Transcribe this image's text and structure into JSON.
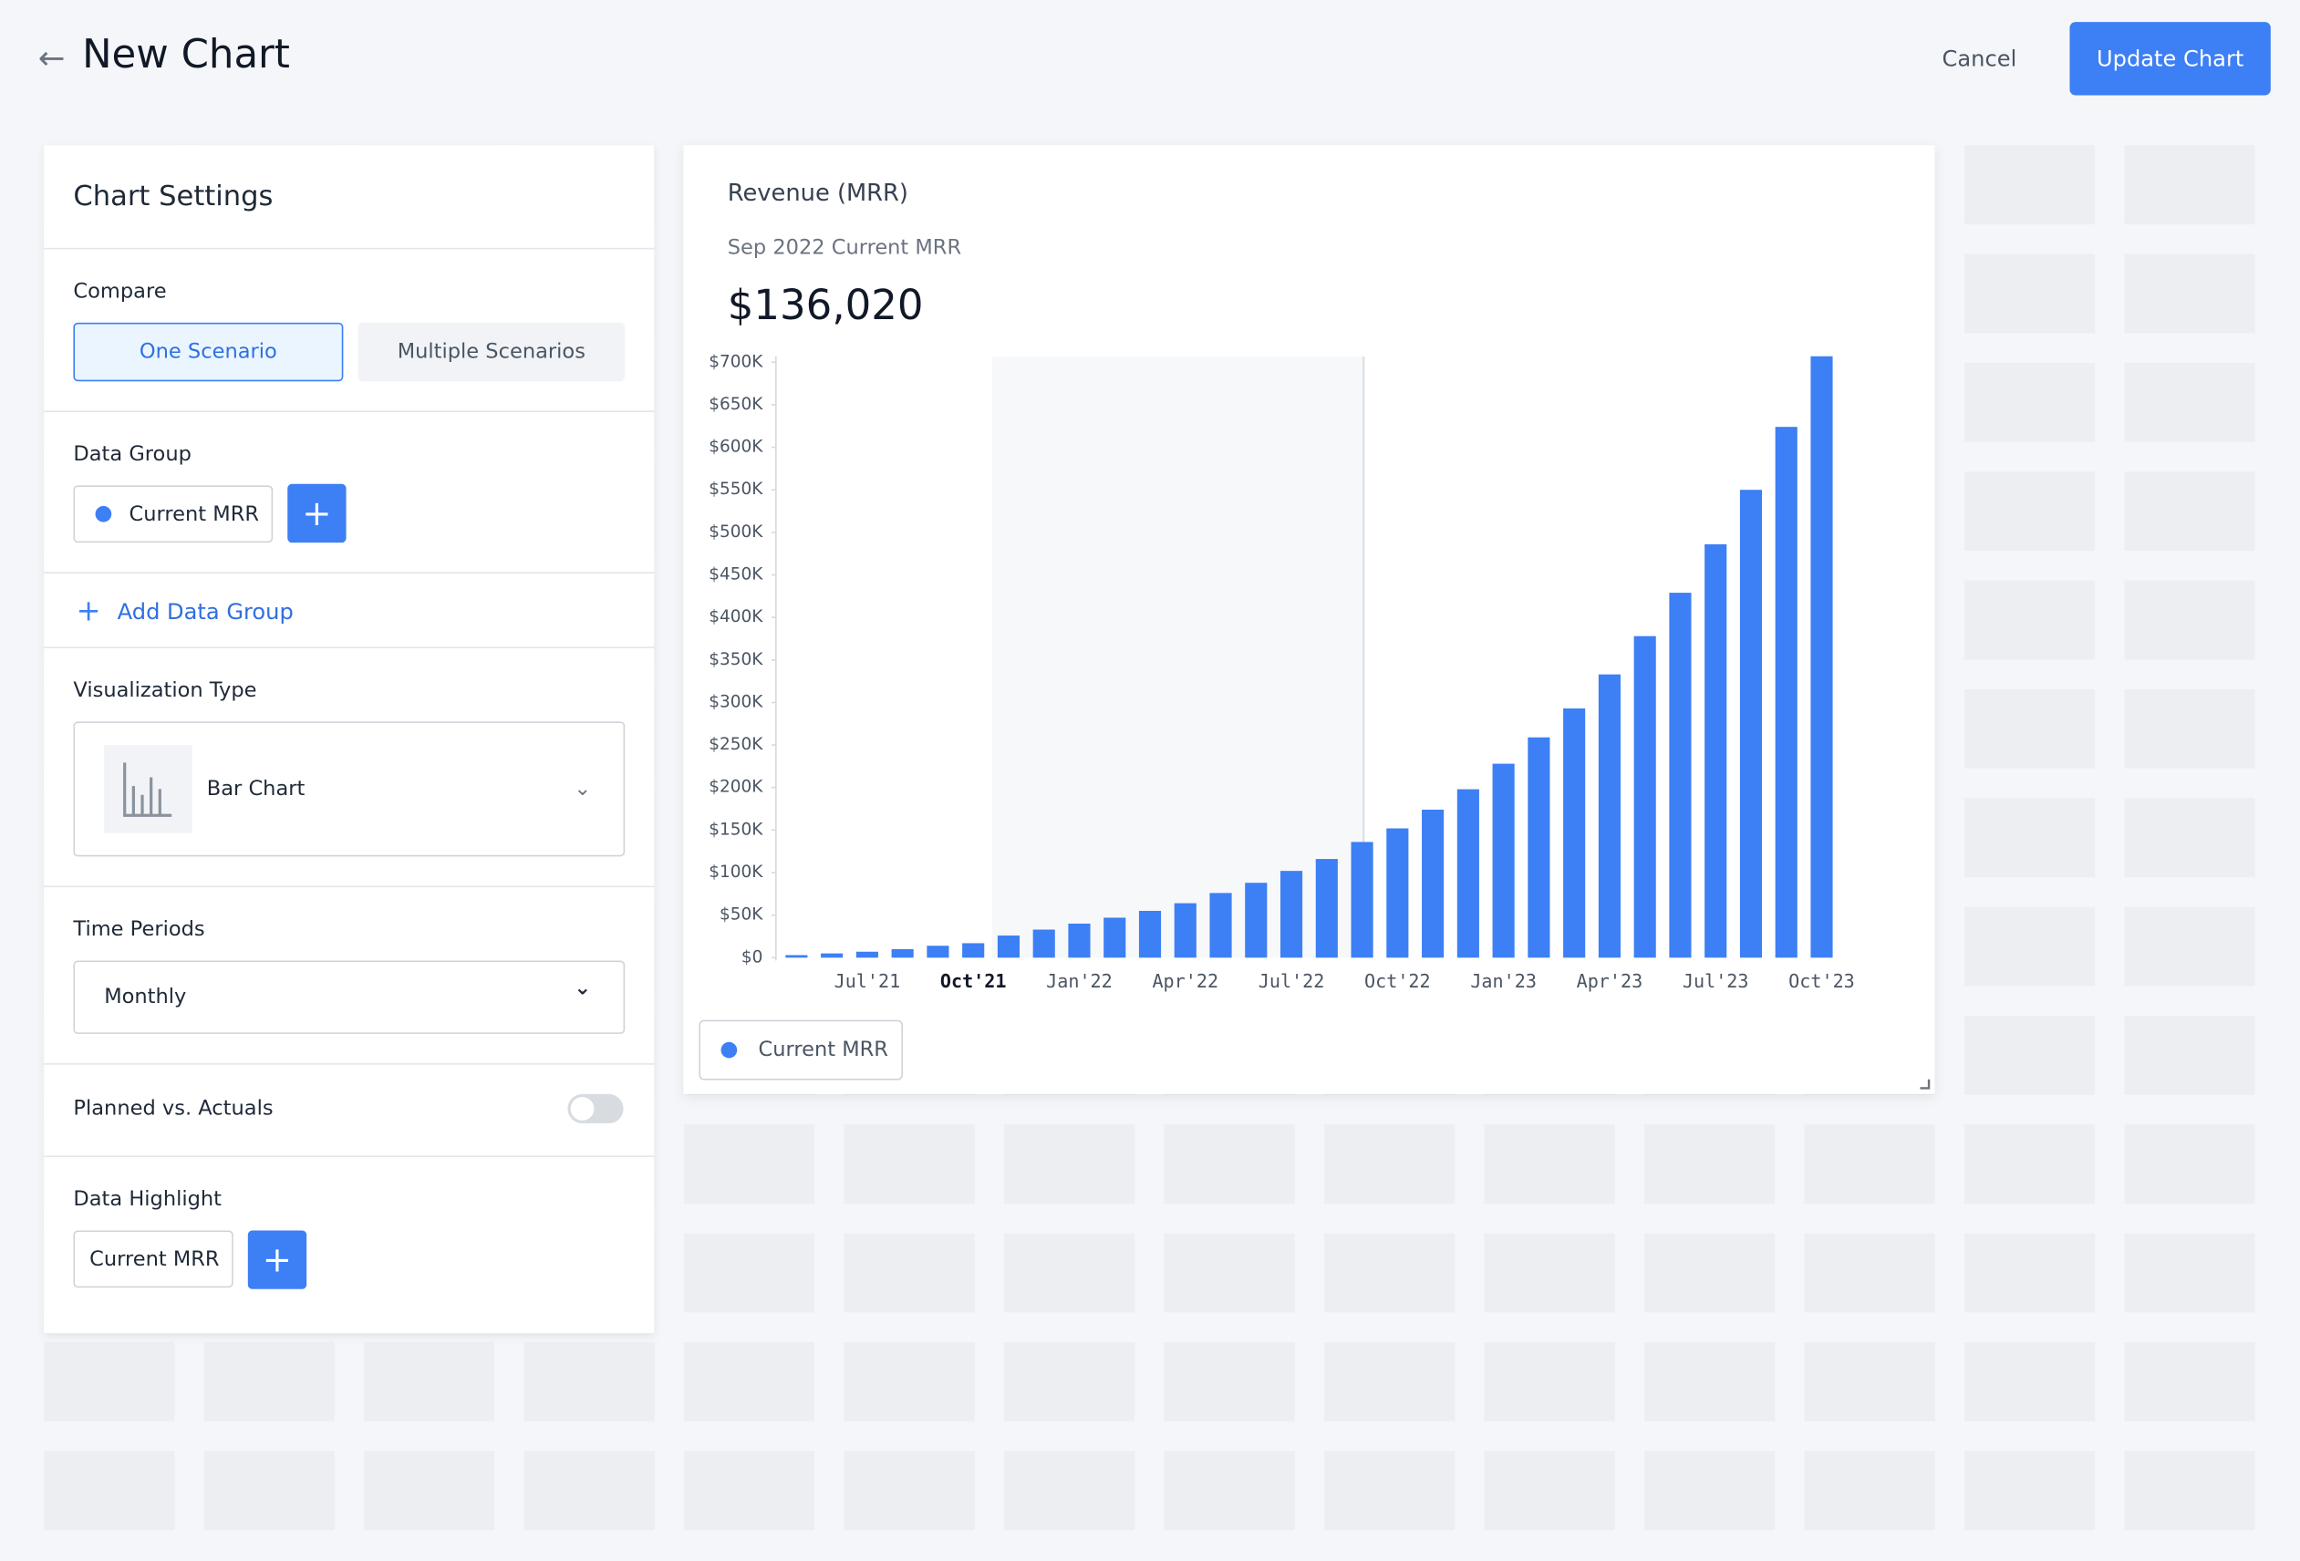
{
  "header": {
    "title": "New Chart",
    "cancel": "Cancel",
    "update": "Update Chart"
  },
  "settings": {
    "title": "Chart Settings",
    "compare": {
      "label": "Compare",
      "options": [
        "One Scenario",
        "Multiple Scenarios"
      ]
    },
    "data_group": {
      "label": "Data Group",
      "item": "Current MRR",
      "add": "Add Data Group"
    },
    "visualization": {
      "label": "Visualization Type",
      "value": "Bar Chart"
    },
    "time_periods": {
      "label": "Time Periods",
      "value": "Monthly"
    },
    "planned": {
      "label": "Planned vs. Actuals"
    },
    "highlight": {
      "label": "Data Highlight",
      "item": "Current MRR"
    }
  },
  "chart_data": {
    "type": "bar",
    "title": "Revenue (MRR)",
    "subtitle": "Sep 2022 Current MRR",
    "annotation": "$136,020",
    "categories": [
      null,
      null,
      "Jul'21",
      null,
      null,
      "Oct'21",
      null,
      null,
      "Jan'22",
      null,
      null,
      "Apr'22",
      null,
      null,
      "Jul'22",
      null,
      null,
      "Oct'22",
      null,
      null,
      "Jan'23",
      null,
      null,
      "Apr'23",
      null,
      null,
      "Jul'23",
      null,
      null,
      "Oct'23"
    ],
    "series": [
      {
        "name": "Current MRR",
        "color": "#3d7ff5",
        "values": [
          3000,
          5000,
          7000,
          10000,
          14000,
          17000,
          26000,
          33000,
          40000,
          47000,
          55000,
          64000,
          76000,
          88000,
          102000,
          116000,
          136020,
          152000,
          174000,
          198000,
          228000,
          259000,
          293000,
          333000,
          378000,
          429000,
          486000,
          550000,
          624000,
          707000
        ]
      }
    ],
    "ylim": [
      0,
      700000
    ],
    "yticks": [
      {
        "value": 0,
        "label": "$0"
      },
      {
        "value": 50000,
        "label": "$50K"
      },
      {
        "value": 100000,
        "label": "$100K"
      },
      {
        "value": 150000,
        "label": "$150K"
      },
      {
        "value": 200000,
        "label": "$200K"
      },
      {
        "value": 250000,
        "label": "$250K"
      },
      {
        "value": 300000,
        "label": "$300K"
      },
      {
        "value": 350000,
        "label": "$350K"
      },
      {
        "value": 400000,
        "label": "$400K"
      },
      {
        "value": 450000,
        "label": "$450K"
      },
      {
        "value": 500000,
        "label": "$500K"
      },
      {
        "value": 550000,
        "label": "$550K"
      },
      {
        "value": 600000,
        "label": "$600K"
      },
      {
        "value": 650000,
        "label": "$650K"
      },
      {
        "value": 700000,
        "label": "$700K"
      }
    ],
    "grid": false
  }
}
